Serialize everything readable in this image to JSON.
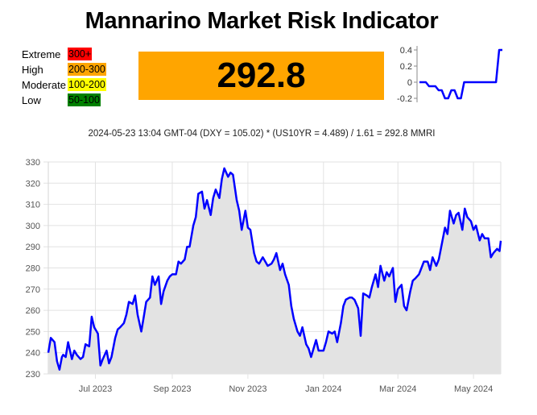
{
  "title": "Mannarino Market Risk Indicator",
  "legend": [
    {
      "name": "Extreme",
      "range": "300+",
      "color": "#ff0000"
    },
    {
      "name": "High",
      "range": "200-300",
      "color": "#ffa500"
    },
    {
      "name": "Moderate",
      "range": "100-200",
      "color": "#ffff00"
    },
    {
      "name": "Low",
      "range": "50-100",
      "color": "#008000"
    }
  ],
  "current_value": "292.8",
  "current_color": "#ffa500",
  "formula": "2024-05-23 13:04 GMT-04 (DXY = 105.02) * (US10YR = 4.489) / 1.61 = 292.8 MMRI",
  "chart_data": [
    {
      "type": "line",
      "title": "",
      "xlabel": "",
      "ylabel": "",
      "ylim": [
        -0.25,
        0.45
      ],
      "yticks": [
        0.4,
        0.2,
        0,
        -0.2
      ],
      "ytick_labels": [
        "0.4",
        "0.2",
        "0",
        "-0.2"
      ],
      "grid": false,
      "line_color": "#0000ff",
      "x": [
        0,
        1,
        2,
        3,
        4,
        5,
        6,
        7,
        8,
        9,
        10,
        11,
        12,
        13,
        14,
        15,
        16,
        17,
        18,
        19,
        20,
        21,
        22,
        23,
        24,
        25,
        26
      ],
      "values": [
        0,
        0,
        0,
        -0.05,
        -0.05,
        -0.05,
        -0.1,
        -0.1,
        -0.2,
        -0.2,
        -0.1,
        -0.1,
        -0.2,
        -0.2,
        0,
        0,
        0,
        0,
        0,
        0,
        0,
        0,
        0,
        0,
        0,
        0.4,
        0.4
      ]
    },
    {
      "type": "area",
      "title": "",
      "xlabel": "",
      "ylabel": "",
      "ylim": [
        230,
        330
      ],
      "yticks": [
        230,
        240,
        250,
        260,
        270,
        280,
        290,
        300,
        310,
        320,
        330
      ],
      "xlim": [
        "2023-05-24",
        "2024-05-23"
      ],
      "xtick_labels": [
        "Jul 2023",
        "Sep 2023",
        "Nov 2023",
        "Jan 2024",
        "Mar 2024",
        "May 2024"
      ],
      "xtick_dates": [
        "2023-07-01",
        "2023-09-01",
        "2023-11-01",
        "2024-01-01",
        "2024-03-01",
        "2024-05-01"
      ],
      "grid": true,
      "line_color": "#0000ff",
      "fill_color": "#e3e3e3",
      "series": [
        {
          "x": [
            "2023-05-24",
            "2023-05-26",
            "2023-05-29",
            "2023-05-31",
            "2023-06-02",
            "2023-06-04",
            "2023-06-05",
            "2023-06-07",
            "2023-06-09",
            "2023-06-12",
            "2023-06-14",
            "2023-06-16",
            "2023-06-19",
            "2023-06-21",
            "2023-06-23",
            "2023-06-26",
            "2023-06-28",
            "2023-06-30",
            "2023-07-03",
            "2023-07-05",
            "2023-07-07",
            "2023-07-10",
            "2023-07-12",
            "2023-07-14",
            "2023-07-17",
            "2023-07-19",
            "2023-07-21",
            "2023-07-24",
            "2023-07-26",
            "2023-07-28",
            "2023-07-31",
            "2023-08-02",
            "2023-08-04",
            "2023-08-07",
            "2023-08-09",
            "2023-08-11",
            "2023-08-14",
            "2023-08-16",
            "2023-08-18",
            "2023-08-21",
            "2023-08-23",
            "2023-08-25",
            "2023-08-28",
            "2023-08-30",
            "2023-09-01",
            "2023-09-04",
            "2023-09-06",
            "2023-09-08",
            "2023-09-11",
            "2023-09-13",
            "2023-09-15",
            "2023-09-18",
            "2023-09-20",
            "2023-09-22",
            "2023-09-25",
            "2023-09-27",
            "2023-09-29",
            "2023-10-02",
            "2023-10-04",
            "2023-10-06",
            "2023-10-09",
            "2023-10-11",
            "2023-10-13",
            "2023-10-16",
            "2023-10-18",
            "2023-10-20",
            "2023-10-23",
            "2023-10-25",
            "2023-10-27",
            "2023-10-30",
            "2023-11-01",
            "2023-11-03",
            "2023-11-06",
            "2023-11-08",
            "2023-11-10",
            "2023-11-13",
            "2023-11-15",
            "2023-11-17",
            "2023-11-20",
            "2023-11-22",
            "2023-11-24",
            "2023-11-27",
            "2023-11-29",
            "2023-12-01",
            "2023-12-04",
            "2023-12-06",
            "2023-12-08",
            "2023-12-11",
            "2023-12-13",
            "2023-12-15",
            "2023-12-18",
            "2023-12-20",
            "2023-12-22",
            "2023-12-26",
            "2023-12-28",
            "2024-01-01",
            "2024-01-03",
            "2024-01-05",
            "2024-01-08",
            "2024-01-10",
            "2024-01-12",
            "2024-01-15",
            "2024-01-17",
            "2024-01-19",
            "2024-01-22",
            "2024-01-24",
            "2024-01-26",
            "2024-01-29",
            "2024-01-31",
            "2024-02-02",
            "2024-02-05",
            "2024-02-07",
            "2024-02-09",
            "2024-02-12",
            "2024-02-14",
            "2024-02-16",
            "2024-02-19",
            "2024-02-21",
            "2024-02-23",
            "2024-02-26",
            "2024-02-28",
            "2024-03-01",
            "2024-03-04",
            "2024-03-06",
            "2024-03-08",
            "2024-03-11",
            "2024-03-13",
            "2024-03-15",
            "2024-03-18",
            "2024-03-20",
            "2024-03-22",
            "2024-03-25",
            "2024-03-27",
            "2024-03-29",
            "2024-04-01",
            "2024-04-03",
            "2024-04-05",
            "2024-04-08",
            "2024-04-10",
            "2024-04-12",
            "2024-04-15",
            "2024-04-17",
            "2024-04-19",
            "2024-04-22",
            "2024-04-24",
            "2024-04-26",
            "2024-04-29",
            "2024-05-01",
            "2024-05-03",
            "2024-05-06",
            "2024-05-08",
            "2024-05-10",
            "2024-05-13",
            "2024-05-15",
            "2024-05-17",
            "2024-05-20",
            "2024-05-22",
            "2024-05-23"
          ],
          "values": [
            240,
            247,
            245,
            236,
            232,
            238,
            239,
            238,
            245,
            237,
            241,
            239,
            237,
            238,
            244,
            243,
            257,
            252,
            249,
            234,
            237,
            241,
            235,
            238,
            247,
            251,
            252,
            254,
            258,
            264,
            263,
            267,
            258,
            250,
            257,
            264,
            266,
            276,
            272,
            276,
            263,
            269,
            274,
            276,
            277,
            277,
            283,
            282,
            284,
            290,
            290,
            300,
            304,
            315,
            316,
            308,
            312,
            305,
            313,
            317,
            313,
            322,
            327,
            323,
            325,
            324,
            312,
            307,
            298,
            307,
            299,
            298,
            287,
            283,
            282,
            285,
            283,
            281,
            282,
            284,
            287,
            279,
            282,
            277,
            272,
            262,
            256,
            250,
            248,
            252,
            244,
            242,
            238,
            246,
            241,
            241,
            245,
            250,
            249,
            250,
            245,
            254,
            262,
            265,
            266,
            266,
            265,
            261,
            248,
            268,
            267,
            266,
            271,
            277,
            271,
            281,
            274,
            278,
            276,
            280,
            264,
            270,
            272,
            262,
            260,
            269,
            274,
            275,
            277,
            280,
            283,
            283,
            279,
            285,
            281,
            284,
            290,
            299,
            296,
            307,
            301,
            305,
            306,
            298,
            308,
            304,
            302,
            298,
            300,
            293,
            296,
            294,
            294,
            285,
            287,
            289,
            288,
            292.8
          ]
        }
      ]
    }
  ]
}
